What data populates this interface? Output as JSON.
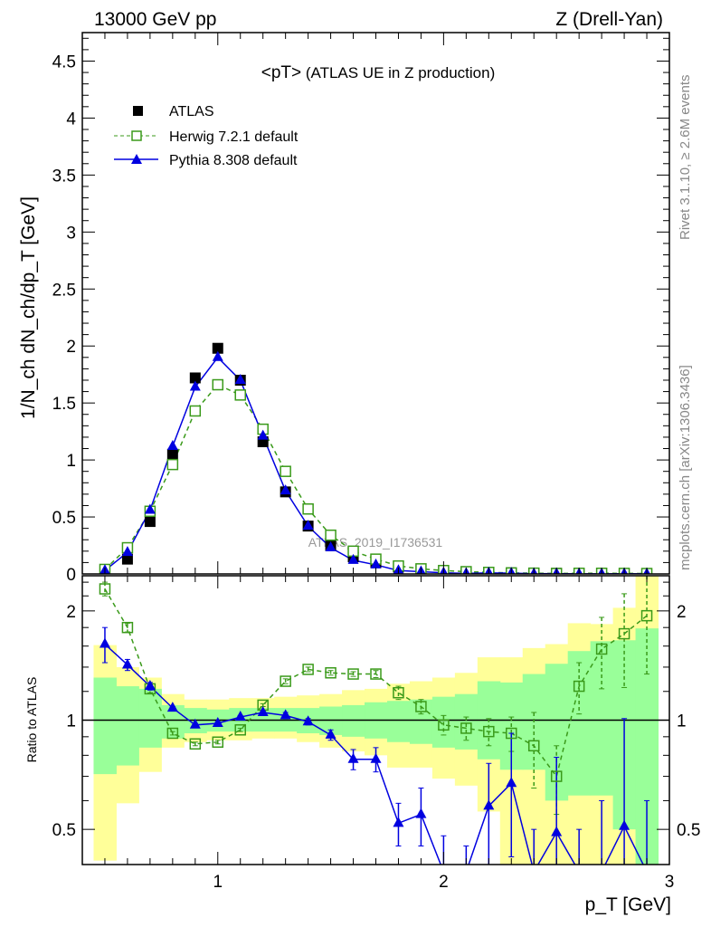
{
  "header": {
    "left": "13000 GeV pp",
    "right": "Z (Drell-Yan)"
  },
  "side_labels": {
    "rivet": "Rivet 3.1.10, ≥ 2.6M events",
    "mcplots": "mcplots.cern.ch [arXiv:1306.3436]"
  },
  "watermark": "ATLAS_2019_I1736531",
  "chart_data": [
    {
      "type": "scatter",
      "title": "<pT>",
      "subtitle": "(ATLAS UE in Z production)",
      "xlabel": "p_T [GeV]",
      "ylabel": "1/N_ch dN_ch/dp_T [GeV]",
      "xlim": [
        0.4,
        3.0
      ],
      "ylim": [
        0,
        4.75
      ],
      "yticks": [
        "0",
        "0.5",
        "1",
        "1.5",
        "2",
        "2.5",
        "3",
        "3.5",
        "4",
        "4.5"
      ],
      "legend_placement": "top-left",
      "x": [
        0.5,
        0.6,
        0.7,
        0.8,
        0.9,
        1.0,
        1.1,
        1.2,
        1.3,
        1.4,
        1.5,
        1.6,
        1.7,
        1.8,
        1.9,
        2.0,
        2.1,
        2.2,
        2.3,
        2.4,
        2.5,
        2.6,
        2.7,
        2.8,
        2.9
      ],
      "series": [
        {
          "name": "ATLAS",
          "color": "#000000",
          "marker": "filled-square",
          "values": [
            0.018,
            0.13,
            0.46,
            1.05,
            1.72,
            1.98,
            1.7,
            1.16,
            0.72,
            0.42,
            0.25,
            0.15,
            0.1,
            0.06,
            0.04,
            0.03,
            0.02,
            0.015,
            0.01,
            0.008,
            0.006,
            0.005,
            0.004,
            0.003,
            0.002
          ]
        },
        {
          "name": "Herwig 7.2.1 default",
          "color": "#3a9a1a",
          "marker": "open-square",
          "line": "dashed",
          "values": [
            0.04,
            0.23,
            0.55,
            0.96,
            1.43,
            1.66,
            1.57,
            1.27,
            0.9,
            0.57,
            0.34,
            0.2,
            0.13,
            0.07,
            0.045,
            0.03,
            0.02,
            0.014,
            0.009,
            0.007,
            0.004,
            0.006,
            0.006,
            0.005,
            0.004
          ]
        },
        {
          "name": "Pythia 8.308 default",
          "color": "#0000e0",
          "marker": "filled-triangle",
          "line": "solid",
          "values": [
            0.03,
            0.19,
            0.56,
            1.12,
            1.64,
            1.9,
            1.7,
            1.21,
            0.73,
            0.42,
            0.23,
            0.12,
            0.08,
            0.03,
            0.02,
            0.01,
            0.005,
            0.009,
            0.007,
            0.002,
            0.003,
            0.001,
            0.001,
            0.0015,
            0.0005
          ]
        }
      ]
    },
    {
      "type": "line",
      "ylabel": "Ratio to ATLAS",
      "xlabel": "p_T [GeV]",
      "xlim": [
        0.4,
        3.0
      ],
      "ylim": [
        0.4,
        2.5
      ],
      "yscale": "log",
      "yticks": [
        "0.5",
        "1",
        "2"
      ],
      "xticks": [
        "1",
        "2",
        "3"
      ],
      "x": [
        0.5,
        0.6,
        0.7,
        0.8,
        0.9,
        1.0,
        1.1,
        1.2,
        1.3,
        1.4,
        1.5,
        1.6,
        1.7,
        1.8,
        1.9,
        2.0,
        2.1,
        2.2,
        2.3,
        2.4,
        2.5,
        2.6,
        2.7,
        2.8,
        2.9
      ],
      "bands": {
        "total": {
          "color": "#ffff99",
          "lo": [
            0.41,
            0.59,
            0.72,
            0.84,
            0.87,
            0.88,
            0.88,
            0.89,
            0.89,
            0.87,
            0.84,
            0.82,
            0.8,
            0.74,
            0.74,
            0.69,
            0.66,
            0.56,
            0.4,
            0.4,
            0.4,
            0.4,
            0.4,
            0.4,
            0.4
          ],
          "hi": [
            1.61,
            1.4,
            1.31,
            1.18,
            1.14,
            1.14,
            1.15,
            1.15,
            1.16,
            1.17,
            1.18,
            1.21,
            1.22,
            1.26,
            1.28,
            1.31,
            1.35,
            1.49,
            1.49,
            1.58,
            1.62,
            1.85,
            1.84,
            2.04,
            2.5
          ]
        },
        "stat": {
          "color": "#99ff99",
          "lo": [
            0.71,
            0.75,
            0.84,
            0.89,
            0.92,
            0.93,
            0.93,
            0.93,
            0.93,
            0.92,
            0.91,
            0.9,
            0.89,
            0.87,
            0.86,
            0.84,
            0.83,
            0.78,
            0.73,
            0.73,
            0.6,
            0.62,
            0.62,
            0.5,
            0.4
          ],
          "hi": [
            1.31,
            1.24,
            1.22,
            1.1,
            1.08,
            1.07,
            1.08,
            1.08,
            1.08,
            1.08,
            1.09,
            1.1,
            1.12,
            1.13,
            1.14,
            1.16,
            1.18,
            1.28,
            1.27,
            1.34,
            1.43,
            1.55,
            1.65,
            1.66,
            1.79
          ]
        }
      },
      "series": [
        {
          "name": "Herwig 7.2.1 default",
          "color": "#3a9a1a",
          "values": [
            2.3,
            1.8,
            1.22,
            0.92,
            0.86,
            0.87,
            0.94,
            1.1,
            1.28,
            1.38,
            1.35,
            1.34,
            1.34,
            1.19,
            1.09,
            0.97,
            0.95,
            0.93,
            0.92,
            0.85,
            0.7,
            1.24,
            1.57,
            1.73,
            1.94
          ],
          "errors": [
            0.1,
            0.05,
            0.03,
            0.01,
            0.01,
            0.01,
            0.01,
            0.01,
            0.02,
            0.02,
            0.02,
            0.02,
            0.03,
            0.05,
            0.05,
            0.06,
            0.07,
            0.08,
            0.1,
            0.2,
            0.15,
            0.2,
            0.35,
            0.5,
            0.6
          ]
        },
        {
          "name": "Pythia 8.308 default",
          "color": "#0000e0",
          "values": [
            1.62,
            1.42,
            1.24,
            1.08,
            0.97,
            0.98,
            1.02,
            1.05,
            1.03,
            0.99,
            0.91,
            0.78,
            0.78,
            0.52,
            0.55,
            0.38,
            0.3,
            0.58,
            0.67,
            0.3,
            0.49,
            0.3,
            0.3,
            0.51,
            0.3
          ],
          "errors": [
            0.18,
            0.05,
            0.03,
            0.01,
            0.01,
            0.01,
            0.01,
            0.01,
            0.02,
            0.02,
            0.03,
            0.05,
            0.06,
            0.07,
            0.1,
            0.1,
            0.15,
            0.18,
            0.25,
            0.2,
            0.3,
            0.2,
            0.3,
            0.5,
            0.3
          ]
        }
      ]
    }
  ]
}
